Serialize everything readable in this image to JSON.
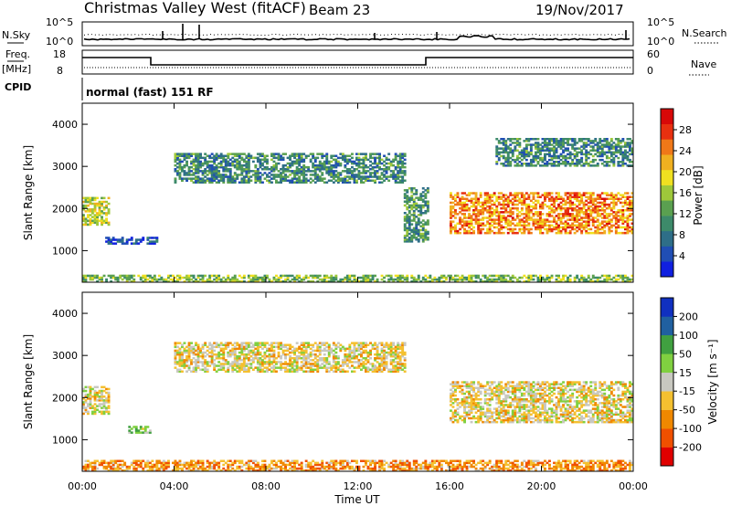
{
  "header": {
    "title": "Christmas Valley West (fitACF)",
    "beam": "Beam 23",
    "date": "19/Nov/2017"
  },
  "top_panels": {
    "nsky_label": "N.Sky",
    "nsearch_label": "N.Search",
    "noise_ticks": [
      "10^5",
      "10^0"
    ],
    "freq_label": "Freq.",
    "freq_unit": "[MHz]",
    "freq_ticks": [
      "18",
      "8"
    ],
    "nave_label": "Nave",
    "nave_ticks": [
      "60",
      "0"
    ],
    "cpid_label": "CPID",
    "cpid_text": "normal (fast) 151 RF"
  },
  "chart_data": [
    {
      "type": "heatmap",
      "name": "power",
      "ylabel": "Slant Range [km]",
      "yticks": [
        1000,
        2000,
        3000,
        4000
      ],
      "ylim": [
        250,
        4500
      ],
      "colorbar_label": "Power [dB]",
      "colorbar_ticks": [
        "4",
        "8",
        "12",
        "16",
        "20",
        "24",
        "28"
      ],
      "colors": [
        "#1020e0",
        "#204eb4",
        "#2e6e88",
        "#3d8a6a",
        "#5aa050",
        "#9ec83a",
        "#f0e020",
        "#f0b020",
        "#f07818",
        "#e83010",
        "#d80808"
      ],
      "features": [
        {
          "t0": 0.0,
          "t1": 1.2,
          "r0": 1600,
          "r1": 2250,
          "level": 0.55
        },
        {
          "t0": 1.0,
          "t1": 3.3,
          "r0": 1150,
          "r1": 1300,
          "level": 0.15
        },
        {
          "t0": 4.0,
          "t1": 14.0,
          "r0": 2600,
          "r1": 3300,
          "level": 0.3
        },
        {
          "t0": 14.0,
          "t1": 15.0,
          "r0": 1200,
          "r1": 2500,
          "level": 0.35
        },
        {
          "t0": 16.0,
          "t1": 24.0,
          "r0": 1400,
          "r1": 2350,
          "level": 0.75
        },
        {
          "t0": 18.0,
          "t1": 24.0,
          "r0": 3000,
          "r1": 3650,
          "level": 0.3
        },
        {
          "t0": 0.0,
          "t1": 24.0,
          "r0": 250,
          "r1": 430,
          "level": 0.45
        }
      ]
    },
    {
      "type": "heatmap",
      "name": "velocity",
      "xlabel": "Time UT",
      "ylabel": "Slant Range [km]",
      "xticks": [
        "00:00",
        "04:00",
        "08:00",
        "12:00",
        "16:00",
        "20:00",
        "00:00"
      ],
      "xlim": [
        0,
        24
      ],
      "yticks": [
        1000,
        2000,
        3000,
        4000
      ],
      "ylim": [
        250,
        4500
      ],
      "colorbar_label": "Velocity [m s⁻¹]",
      "colorbar_ticks": [
        "-200",
        "-100",
        "-50",
        "-15",
        "15",
        "50",
        "100",
        "200"
      ],
      "colors": [
        "#e00000",
        "#f05000",
        "#f08800",
        "#f4c030",
        "#c8c8c0",
        "#80d040",
        "#40a040",
        "#2060a0",
        "#1030c0"
      ],
      "features": [
        {
          "t0": 0.0,
          "t1": 1.2,
          "r0": 1600,
          "r1": 2250,
          "level": 0.45
        },
        {
          "t0": 2.0,
          "t1": 3.0,
          "r0": 1150,
          "r1": 1300,
          "level": 0.6
        },
        {
          "t0": 4.0,
          "t1": 14.0,
          "r0": 2600,
          "r1": 3300,
          "level": 0.45
        },
        {
          "t0": 16.0,
          "t1": 24.0,
          "r0": 1400,
          "r1": 2350,
          "level": 0.45
        },
        {
          "t0": 0.0,
          "t1": 24.0,
          "r0": 250,
          "r1": 500,
          "level": 0.3
        }
      ]
    }
  ]
}
